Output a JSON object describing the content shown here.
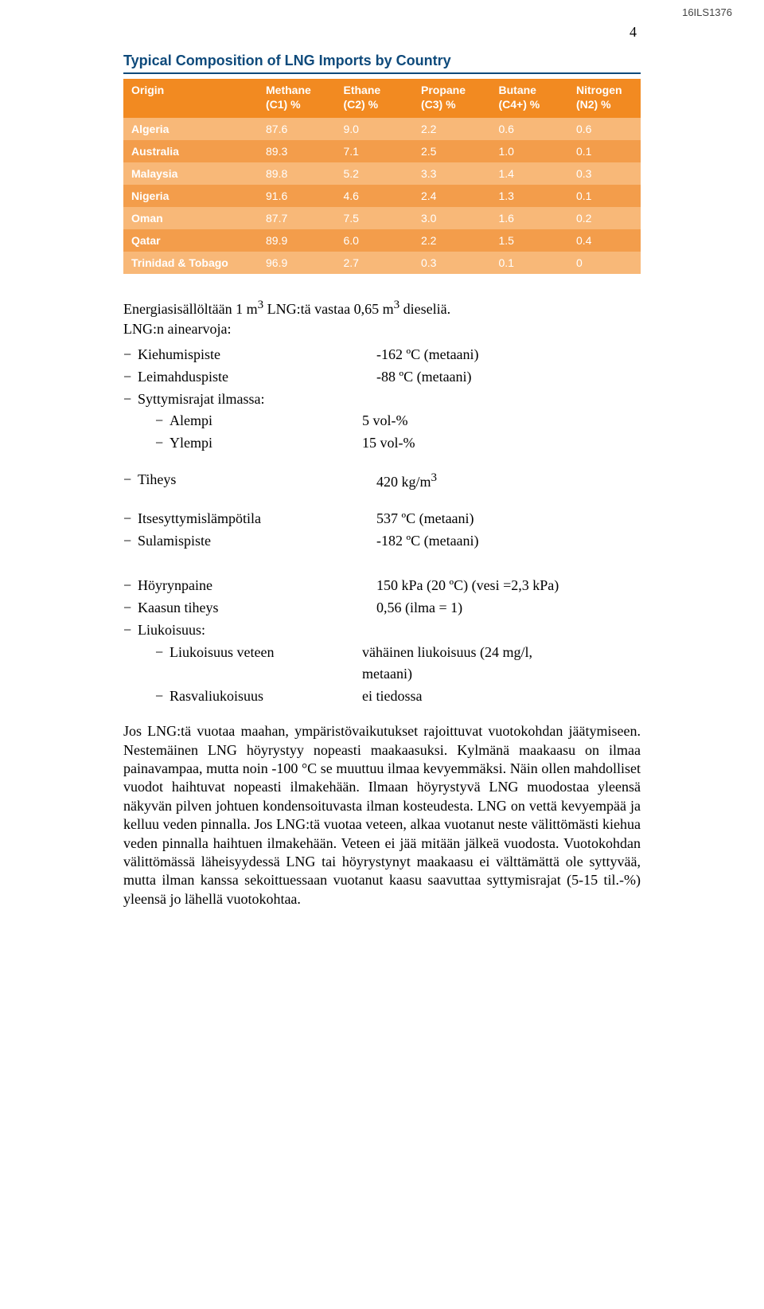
{
  "doc_id": "16ILS1376",
  "page_number": "4",
  "table": {
    "title": "Typical Composition of LNG Imports by Country",
    "header_bg": "#f28a21",
    "row_light_bg": "#f8b878",
    "row_dark_bg": "#f39d4b",
    "header_text_color": "#ffffff",
    "cell_text_color": "#ffffff",
    "columns": [
      {
        "label": "Origin",
        "sub": ""
      },
      {
        "label": "Methane",
        "sub": "(C1) %"
      },
      {
        "label": "Ethane",
        "sub": "(C2) %"
      },
      {
        "label": "Propane",
        "sub": "(C3) %"
      },
      {
        "label": "Butane",
        "sub": "(C4+) %"
      },
      {
        "label": "Nitrogen",
        "sub": "(N2) %"
      }
    ],
    "col_widths": [
      "26%",
      "15%",
      "15%",
      "15%",
      "15%",
      "14%"
    ],
    "rows": [
      {
        "origin": "Algeria",
        "c1": "87.6",
        "c2": "9.0",
        "c3": "2.2",
        "c4": "0.6",
        "n2": "0.6"
      },
      {
        "origin": "Australia",
        "c1": "89.3",
        "c2": "7.1",
        "c3": "2.5",
        "c4": "1.0",
        "n2": "0.1"
      },
      {
        "origin": "Malaysia",
        "c1": "89.8",
        "c2": "5.2",
        "c3": "3.3",
        "c4": "1.4",
        "n2": "0.3"
      },
      {
        "origin": "Nigeria",
        "c1": "91.6",
        "c2": "4.6",
        "c3": "2.4",
        "c4": "1.3",
        "n2": "0.1"
      },
      {
        "origin": "Oman",
        "c1": "87.7",
        "c2": "7.5",
        "c3": "3.0",
        "c4": "1.6",
        "n2": "0.2"
      },
      {
        "origin": "Qatar",
        "c1": "89.9",
        "c2": "6.0",
        "c3": "2.2",
        "c4": "1.5",
        "n2": "0.4"
      },
      {
        "origin": "Trinidad & Tobago",
        "c1": "96.9",
        "c2": "2.7",
        "c3": "0.3",
        "c4": "0.1",
        "n2": "0"
      }
    ]
  },
  "intro_html": "Energiasisällöltään 1 m<sup>3</sup> LNG:tä vastaa 0,65 m<sup>3</sup> dieseliä.",
  "intro2": "LNG:n ainearvoja:",
  "values": {
    "top": [
      {
        "label": "Kiehumispiste",
        "value": "-162 ºC (metaani)",
        "indent": 0,
        "label_w": 300
      },
      {
        "label": "Leimahduspiste",
        "value": "-88 ºC (metaani)",
        "indent": 0,
        "label_w": 300
      },
      {
        "label": "Syttymisrajat ilmassa:",
        "value": "",
        "indent": 0,
        "label_w": 300
      },
      {
        "label": "Alempi",
        "value": "5 vol-%",
        "indent": 1,
        "label_w": 242
      },
      {
        "label": "Ylempi",
        "value": "15 vol-%",
        "indent": 1,
        "label_w": 242
      }
    ],
    "mid": [
      {
        "label": "Tiheys",
        "value_html": "420 kg/m<sup>3</sup>",
        "indent": 0,
        "label_w": 300
      }
    ],
    "mid2": [
      {
        "label": "Itsesyttymislämpötila",
        "value": "537 ºC (metaani)",
        "indent": 0,
        "label_w": 300
      },
      {
        "label": "Sulamispiste",
        "value": "-182 ºC (metaani)",
        "indent": 0,
        "label_w": 300
      }
    ],
    "bot": [
      {
        "label": "Höyrynpaine",
        "value": "150 kPa (20 ºC) (vesi =2,3 kPa)",
        "indent": 0,
        "label_w": 300
      },
      {
        "label": "Kaasun tiheys",
        "value": "0,56 (ilma = 1)",
        "indent": 0,
        "label_w": 300
      },
      {
        "label": "Liukoisuus:",
        "value": "",
        "indent": 0,
        "label_w": 300
      },
      {
        "label": "Liukoisuus veteen",
        "value": "vähäinen liukoisuus (24 mg/l, metaani)",
        "indent": 1,
        "label_w": 242,
        "wrap": true
      },
      {
        "label": "Rasvaliukoisuus",
        "value": "ei tiedossa",
        "indent": 1,
        "label_w": 242
      }
    ]
  },
  "paragraph": "Jos LNG:tä vuotaa maahan, ympäristövaikutukset rajoittuvat vuotokohdan jäätymiseen. Nestemäinen LNG höyrystyy nopeasti maakaasuksi. Kylmänä maakaasu on ilmaa painavampaa, mutta noin -100 °C se muuttuu ilmaa kevyemmäksi.  Näin ollen mahdolliset vuodot haihtuvat nopeasti ilmakehään. Ilmaan höyrystyvä LNG muodostaa yleensä näkyvän pilven johtuen kondensoituvasta ilman kosteudesta. LNG on vettä kevyempää ja kelluu veden pinnalla. Jos LNG:tä vuotaa veteen, alkaa vuotanut neste välittömästi kiehua veden pinnalla haihtuen ilmakehään. Veteen ei jää mitään jälkeä vuodosta. Vuotokohdan välittömässä läheisyydessä LNG tai höyrystynyt maakaasu ei välttämättä ole syttyvää, mutta ilman kanssa sekoittuessaan vuotanut kaasu saavuttaa syttymisrajat (5-15 til.-%) yleensä jo lähellä vuotokohtaa."
}
